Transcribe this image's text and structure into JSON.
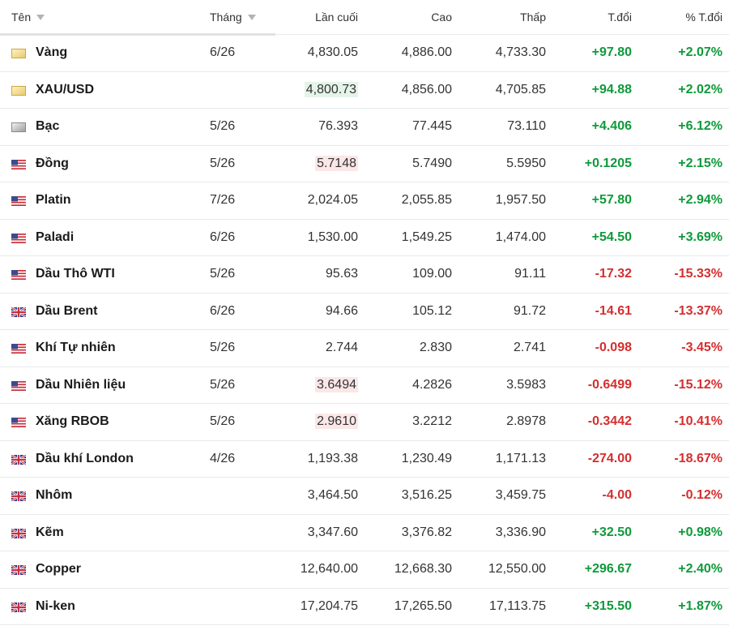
{
  "columns": {
    "name": "Tên",
    "month": "Tháng",
    "last": "Lần cuối",
    "high": "Cao",
    "low": "Thấp",
    "change": "T.đổi",
    "change_pct": "% T.đổi"
  },
  "colors": {
    "positive": "#0e9a3a",
    "negative": "#d32f2f",
    "highlight_up": "#e5f4e9",
    "highlight_down": "#fbe7e7"
  },
  "rows": [
    {
      "flag": "gold-swatch-icon",
      "name": "Vàng",
      "month": "6/26",
      "last": "4,830.05",
      "high": "4,886.00",
      "low": "4,733.30",
      "change": "+97.80",
      "change_pct": "+2.07%",
      "dir": "pos",
      "hl": ""
    },
    {
      "flag": "gold-swatch-icon",
      "name": "XAU/USD",
      "month": "",
      "last": "4,800.73",
      "high": "4,856.00",
      "low": "4,705.85",
      "change": "+94.88",
      "change_pct": "+2.02%",
      "dir": "pos",
      "hl": "green"
    },
    {
      "flag": "silver-swatch-icon",
      "name": "Bạc",
      "month": "5/26",
      "last": "76.393",
      "high": "77.445",
      "low": "73.110",
      "change": "+4.406",
      "change_pct": "+6.12%",
      "dir": "pos",
      "hl": ""
    },
    {
      "flag": "us-flag-icon",
      "name": "Đồng",
      "month": "5/26",
      "last": "5.7148",
      "high": "5.7490",
      "low": "5.5950",
      "change": "+0.1205",
      "change_pct": "+2.15%",
      "dir": "pos",
      "hl": "red"
    },
    {
      "flag": "us-flag-icon",
      "name": "Platin",
      "month": "7/26",
      "last": "2,024.05",
      "high": "2,055.85",
      "low": "1,957.50",
      "change": "+57.80",
      "change_pct": "+2.94%",
      "dir": "pos",
      "hl": ""
    },
    {
      "flag": "us-flag-icon",
      "name": "Paladi",
      "month": "6/26",
      "last": "1,530.00",
      "high": "1,549.25",
      "low": "1,474.00",
      "change": "+54.50",
      "change_pct": "+3.69%",
      "dir": "pos",
      "hl": ""
    },
    {
      "flag": "us-flag-icon",
      "name": "Dầu Thô WTI",
      "month": "5/26",
      "last": "95.63",
      "high": "109.00",
      "low": "91.11",
      "change": "-17.32",
      "change_pct": "-15.33%",
      "dir": "neg",
      "hl": ""
    },
    {
      "flag": "uk-flag-icon",
      "name": "Dầu Brent",
      "month": "6/26",
      "last": "94.66",
      "high": "105.12",
      "low": "91.72",
      "change": "-14.61",
      "change_pct": "-13.37%",
      "dir": "neg",
      "hl": ""
    },
    {
      "flag": "us-flag-icon",
      "name": "Khí Tự nhiên",
      "month": "5/26",
      "last": "2.744",
      "high": "2.830",
      "low": "2.741",
      "change": "-0.098",
      "change_pct": "-3.45%",
      "dir": "neg",
      "hl": ""
    },
    {
      "flag": "us-flag-icon",
      "name": "Dầu Nhiên liệu",
      "month": "5/26",
      "last": "3.6494",
      "high": "4.2826",
      "low": "3.5983",
      "change": "-0.6499",
      "change_pct": "-15.12%",
      "dir": "neg",
      "hl": "red"
    },
    {
      "flag": "us-flag-icon",
      "name": "Xăng RBOB",
      "month": "5/26",
      "last": "2.9610",
      "high": "3.2212",
      "low": "2.8978",
      "change": "-0.3442",
      "change_pct": "-10.41%",
      "dir": "neg",
      "hl": "red"
    },
    {
      "flag": "uk-flag-icon",
      "name": "Dầu khí London",
      "month": "4/26",
      "last": "1,193.38",
      "high": "1,230.49",
      "low": "1,171.13",
      "change": "-274.00",
      "change_pct": "-18.67%",
      "dir": "neg",
      "hl": ""
    },
    {
      "flag": "uk-flag-icon",
      "name": "Nhôm",
      "month": "",
      "last": "3,464.50",
      "high": "3,516.25",
      "low": "3,459.75",
      "change": "-4.00",
      "change_pct": "-0.12%",
      "dir": "neg",
      "hl": ""
    },
    {
      "flag": "uk-flag-icon",
      "name": "Kẽm",
      "month": "",
      "last": "3,347.60",
      "high": "3,376.82",
      "low": "3,336.90",
      "change": "+32.50",
      "change_pct": "+0.98%",
      "dir": "pos",
      "hl": ""
    },
    {
      "flag": "uk-flag-icon",
      "name": "Copper",
      "month": "",
      "last": "12,640.00",
      "high": "12,668.30",
      "low": "12,550.00",
      "change": "+296.67",
      "change_pct": "+2.40%",
      "dir": "pos",
      "hl": ""
    },
    {
      "flag": "uk-flag-icon",
      "name": "Ni-ken",
      "month": "",
      "last": "17,204.75",
      "high": "17,265.50",
      "low": "17,113.75",
      "change": "+315.50",
      "change_pct": "+1.87%",
      "dir": "pos",
      "hl": ""
    }
  ]
}
